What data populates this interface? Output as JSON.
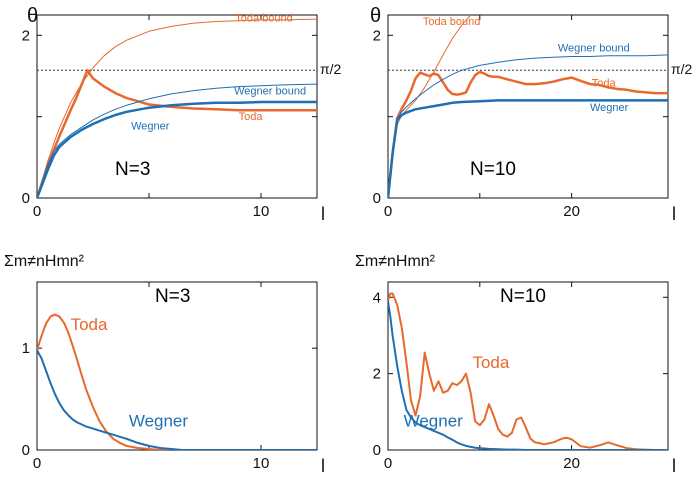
{
  "colors": {
    "toda": "#e8692c",
    "wegner": "#1f6fb4",
    "axis": "#111111",
    "ref": "#333333"
  },
  "chart_data": [
    {
      "type": "line",
      "ylabel": "θ",
      "xlabel": "l",
      "xlim": [
        0,
        12.5
      ],
      "ylim": [
        0,
        2.25
      ],
      "xticks": [
        0,
        10
      ],
      "yticks": [
        0,
        2
      ],
      "minor_xticks": [
        5
      ],
      "minor_yticks": [
        1
      ],
      "panel_label": "N=3",
      "reference_line": {
        "value": 1.5708,
        "label": "π/2",
        "style": "dotted"
      },
      "series": [
        {
          "name": "Toda bound",
          "color_key": "toda",
          "width": 1,
          "x": [
            0,
            0.25,
            0.5,
            0.75,
            1,
            1.5,
            2,
            2.5,
            3,
            3.5,
            4,
            5,
            6,
            7,
            8,
            9,
            10,
            11,
            12.5
          ],
          "y": [
            0,
            0.24,
            0.47,
            0.67,
            0.86,
            1.17,
            1.41,
            1.6,
            1.75,
            1.86,
            1.94,
            2.05,
            2.11,
            2.15,
            2.17,
            2.18,
            2.19,
            2.19,
            2.2
          ]
        },
        {
          "name": "Toda",
          "color_key": "toda",
          "width": 2.5,
          "x": [
            0,
            0.25,
            0.5,
            0.75,
            1,
            1.25,
            1.5,
            1.75,
            2,
            2.25,
            2.5,
            3,
            3.5,
            4,
            4.5,
            5,
            6,
            7,
            8,
            9,
            10,
            11,
            12.5
          ],
          "y": [
            0,
            0.21,
            0.41,
            0.59,
            0.76,
            0.92,
            1.08,
            1.23,
            1.4,
            1.57,
            1.47,
            1.37,
            1.29,
            1.23,
            1.19,
            1.15,
            1.12,
            1.1,
            1.09,
            1.08,
            1.08,
            1.08,
            1.08
          ]
        },
        {
          "name": "Wegner bound",
          "color_key": "wegner",
          "width": 1,
          "x": [
            0,
            0.25,
            0.5,
            0.75,
            1,
            1.5,
            2,
            2.5,
            3,
            3.5,
            4,
            5,
            6,
            7,
            8,
            9,
            10,
            11,
            12.5
          ],
          "y": [
            0,
            0.22,
            0.42,
            0.57,
            0.66,
            0.78,
            0.87,
            0.96,
            1.03,
            1.09,
            1.14,
            1.22,
            1.28,
            1.32,
            1.35,
            1.37,
            1.38,
            1.39,
            1.4
          ]
        },
        {
          "name": "Wegner",
          "color_key": "wegner",
          "width": 2.5,
          "x": [
            0,
            0.25,
            0.5,
            0.75,
            1,
            1.5,
            2,
            2.5,
            3,
            3.5,
            4,
            5,
            6,
            7,
            8,
            9,
            10,
            11,
            12.5
          ],
          "y": [
            0,
            0.18,
            0.36,
            0.52,
            0.63,
            0.75,
            0.84,
            0.91,
            0.97,
            1.02,
            1.06,
            1.11,
            1.14,
            1.16,
            1.17,
            1.17,
            1.18,
            1.18,
            1.18
          ]
        }
      ],
      "annotations": [
        {
          "text": "Toda bound",
          "series": "Toda bound",
          "x": 8.85,
          "y": 2.17
        },
        {
          "text": "Wegner bound",
          "series": "Wegner bound",
          "x": 8.8,
          "y": 1.27
        },
        {
          "text": "Toda",
          "series": "Toda",
          "x": 9.0,
          "y": 0.96
        },
        {
          "text": "Wegner",
          "series": "Wegner",
          "x": 4.2,
          "y": 0.84
        }
      ]
    },
    {
      "type": "line",
      "ylabel": "θ",
      "xlabel": "l",
      "xlim": [
        0,
        30.5
      ],
      "ylim": [
        0,
        2.25
      ],
      "xticks": [
        0,
        20
      ],
      "yticks": [
        0,
        2
      ],
      "minor_xticks": [
        10
      ],
      "minor_yticks": [
        1
      ],
      "panel_label": "N=10",
      "reference_line": {
        "value": 1.5708,
        "label": "π/2",
        "style": "dotted"
      },
      "series": [
        {
          "name": "Toda bound",
          "color_key": "toda",
          "width": 1,
          "x": [
            0,
            0.5,
            1,
            1.5,
            2,
            3,
            4,
            5,
            6,
            7,
            8,
            9,
            9.5
          ],
          "y": [
            0,
            0.5,
            0.9,
            1.02,
            1.08,
            1.2,
            1.36,
            1.55,
            1.76,
            1.96,
            2.12,
            2.25,
            2.3
          ]
        },
        {
          "name": "Toda",
          "color_key": "toda",
          "width": 2.5,
          "x": [
            0,
            0.5,
            1,
            1.5,
            2,
            2.5,
            3,
            3.5,
            4,
            4.5,
            5,
            5.5,
            6,
            6.5,
            7,
            7.5,
            8,
            8.5,
            9,
            9.5,
            10,
            10.5,
            11,
            11.5,
            12,
            13,
            14,
            15,
            16,
            17,
            18,
            19,
            20,
            21,
            22,
            23,
            24,
            25,
            26,
            27,
            28,
            29,
            30.5
          ],
          "y": [
            0,
            0.55,
            0.98,
            1.1,
            1.2,
            1.32,
            1.47,
            1.54,
            1.52,
            1.5,
            1.53,
            1.51,
            1.42,
            1.33,
            1.28,
            1.27,
            1.28,
            1.3,
            1.42,
            1.51,
            1.55,
            1.53,
            1.5,
            1.49,
            1.49,
            1.46,
            1.43,
            1.4,
            1.4,
            1.41,
            1.43,
            1.46,
            1.48,
            1.44,
            1.4,
            1.39,
            1.36,
            1.34,
            1.33,
            1.31,
            1.3,
            1.29,
            1.29
          ]
        },
        {
          "name": "Wegner bound",
          "color_key": "wegner",
          "width": 1,
          "x": [
            0,
            0.5,
            1,
            1.5,
            2,
            3,
            4,
            5,
            6,
            7,
            8,
            10,
            12,
            14,
            16,
            18,
            20,
            22,
            24,
            26,
            28,
            30.5
          ],
          "y": [
            0,
            0.6,
            0.98,
            1.06,
            1.12,
            1.22,
            1.31,
            1.39,
            1.46,
            1.52,
            1.57,
            1.63,
            1.67,
            1.7,
            1.72,
            1.73,
            1.74,
            1.74,
            1.75,
            1.75,
            1.75,
            1.76
          ]
        },
        {
          "name": "Wegner",
          "color_key": "wegner",
          "width": 2.5,
          "x": [
            0,
            0.5,
            1,
            1.5,
            2,
            3,
            4,
            5,
            6,
            7,
            8,
            10,
            12,
            14,
            16,
            18,
            20,
            22,
            24,
            26,
            28,
            30.5
          ],
          "y": [
            0,
            0.55,
            0.96,
            1.02,
            1.05,
            1.09,
            1.11,
            1.13,
            1.15,
            1.17,
            1.18,
            1.19,
            1.2,
            1.2,
            1.2,
            1.2,
            1.2,
            1.2,
            1.2,
            1.2,
            1.2,
            1.2
          ]
        }
      ],
      "annotations": [
        {
          "text": "Toda bound",
          "series": "Toda bound",
          "x": 3.8,
          "y": 2.13
        },
        {
          "text": "Wegner bound",
          "series": "Wegner bound",
          "x": 18.5,
          "y": 1.8
        },
        {
          "text": "Toda",
          "series": "Toda",
          "x": 22.2,
          "y": 1.37
        },
        {
          "text": "Wegner",
          "series": "Wegner",
          "x": 22.0,
          "y": 1.07
        }
      ]
    },
    {
      "type": "line",
      "ylabel": "Σm≠nHmn²",
      "xlabel": "l",
      "xlim": [
        0,
        12.5
      ],
      "ylim": [
        0,
        1.65
      ],
      "xticks": [
        0,
        10
      ],
      "yticks": [
        0,
        1
      ],
      "minor_xticks": [
        5
      ],
      "minor_yticks": [],
      "panel_label": "N=3",
      "series": [
        {
          "name": "Toda",
          "color_key": "toda",
          "width": 2,
          "x": [
            0,
            0.2,
            0.4,
            0.6,
            0.8,
            1.0,
            1.2,
            1.4,
            1.6,
            1.8,
            2.0,
            2.2,
            2.5,
            2.8,
            3.1,
            3.4,
            3.7,
            4.0,
            4.5,
            5,
            5.5,
            6,
            6.5,
            7,
            8,
            9,
            10,
            11,
            12.5
          ],
          "y": [
            0.98,
            1.12,
            1.24,
            1.31,
            1.33,
            1.31,
            1.25,
            1.15,
            1.02,
            0.88,
            0.73,
            0.59,
            0.42,
            0.28,
            0.18,
            0.11,
            0.07,
            0.04,
            0.02,
            0.01,
            0,
            0,
            0,
            0,
            0,
            0,
            0,
            0,
            0
          ]
        },
        {
          "name": "Wegner",
          "color_key": "wegner",
          "width": 2,
          "x": [
            0,
            0.2,
            0.4,
            0.6,
            0.8,
            1.0,
            1.2,
            1.4,
            1.6,
            1.8,
            2.0,
            2.2,
            2.5,
            2.8,
            3.1,
            3.4,
            3.7,
            4.0,
            4.5,
            5,
            5.5,
            6,
            6.5,
            7,
            8,
            9,
            10,
            11,
            12.5
          ],
          "y": [
            0.98,
            0.9,
            0.78,
            0.66,
            0.55,
            0.46,
            0.39,
            0.34,
            0.3,
            0.27,
            0.25,
            0.23,
            0.21,
            0.19,
            0.17,
            0.15,
            0.13,
            0.11,
            0.07,
            0.04,
            0.02,
            0.01,
            0,
            0,
            0,
            0,
            0,
            0,
            0
          ]
        }
      ],
      "annotations": [
        {
          "text": "Toda",
          "series": "Toda",
          "x": 1.5,
          "y": 1.18
        },
        {
          "text": "Wegner",
          "series": "Wegner",
          "x": 4.1,
          "y": 0.23
        }
      ]
    },
    {
      "type": "line",
      "ylabel": "Σm≠nHmn²",
      "xlabel": "l",
      "xlim": [
        0,
        30.5
      ],
      "ylim": [
        0,
        4.4
      ],
      "xticks": [
        0,
        20
      ],
      "yticks": [
        0,
        2,
        4
      ],
      "minor_xticks": [
        10
      ],
      "minor_yticks": [],
      "panel_label": "N=10",
      "series": [
        {
          "name": "Toda",
          "color_key": "toda",
          "width": 2,
          "x": [
            0,
            0.25,
            0.5,
            1,
            1.5,
            2,
            2.5,
            3,
            3.5,
            4,
            4.5,
            5,
            5.5,
            6,
            6.5,
            7,
            7.5,
            8,
            8.5,
            9,
            9.5,
            10,
            10.5,
            11,
            11.5,
            12,
            12.5,
            13,
            13.5,
            14,
            14.5,
            15,
            15.5,
            16,
            16.5,
            17,
            18,
            19,
            19.5,
            20,
            21,
            22,
            23,
            24,
            25,
            26,
            27,
            28,
            29,
            30.5
          ],
          "y": [
            3.9,
            4.1,
            4.1,
            3.8,
            3.2,
            2.3,
            1.3,
            0.9,
            1.4,
            2.55,
            2.0,
            1.55,
            1.8,
            1.5,
            1.55,
            1.75,
            1.7,
            1.8,
            2.0,
            1.5,
            0.75,
            0.65,
            0.8,
            1.2,
            0.9,
            0.55,
            0.4,
            0.35,
            0.45,
            0.8,
            0.85,
            0.6,
            0.3,
            0.2,
            0.18,
            0.15,
            0.2,
            0.3,
            0.32,
            0.28,
            0.1,
            0.06,
            0.12,
            0.2,
            0.12,
            0.05,
            0.02,
            0.01,
            0,
            0
          ]
        },
        {
          "name": "Wegner",
          "color_key": "wegner",
          "width": 2,
          "x": [
            0,
            0.25,
            0.5,
            1,
            1.5,
            2,
            2.5,
            3,
            3.5,
            4,
            4.5,
            5,
            5.5,
            6,
            6.5,
            7,
            7.5,
            8,
            8.5,
            9,
            9.5,
            10,
            11,
            12,
            13,
            14,
            15,
            16,
            18,
            20,
            22,
            24,
            26,
            28,
            30.5
          ],
          "y": [
            3.9,
            3.5,
            3.0,
            2.2,
            1.55,
            1.05,
            0.85,
            0.72,
            0.65,
            0.6,
            0.55,
            0.5,
            0.45,
            0.4,
            0.33,
            0.27,
            0.2,
            0.15,
            0.11,
            0.08,
            0.06,
            0.05,
            0.03,
            0.02,
            0.01,
            0.01,
            0,
            0,
            0,
            0,
            0,
            0,
            0,
            0,
            0
          ]
        }
      ],
      "annotations": [
        {
          "text": "Toda",
          "series": "Toda",
          "x": 9.2,
          "y": 2.15
        },
        {
          "text": "Wegner",
          "series": "Wegner",
          "x": 1.7,
          "y": 0.62
        }
      ]
    }
  ]
}
